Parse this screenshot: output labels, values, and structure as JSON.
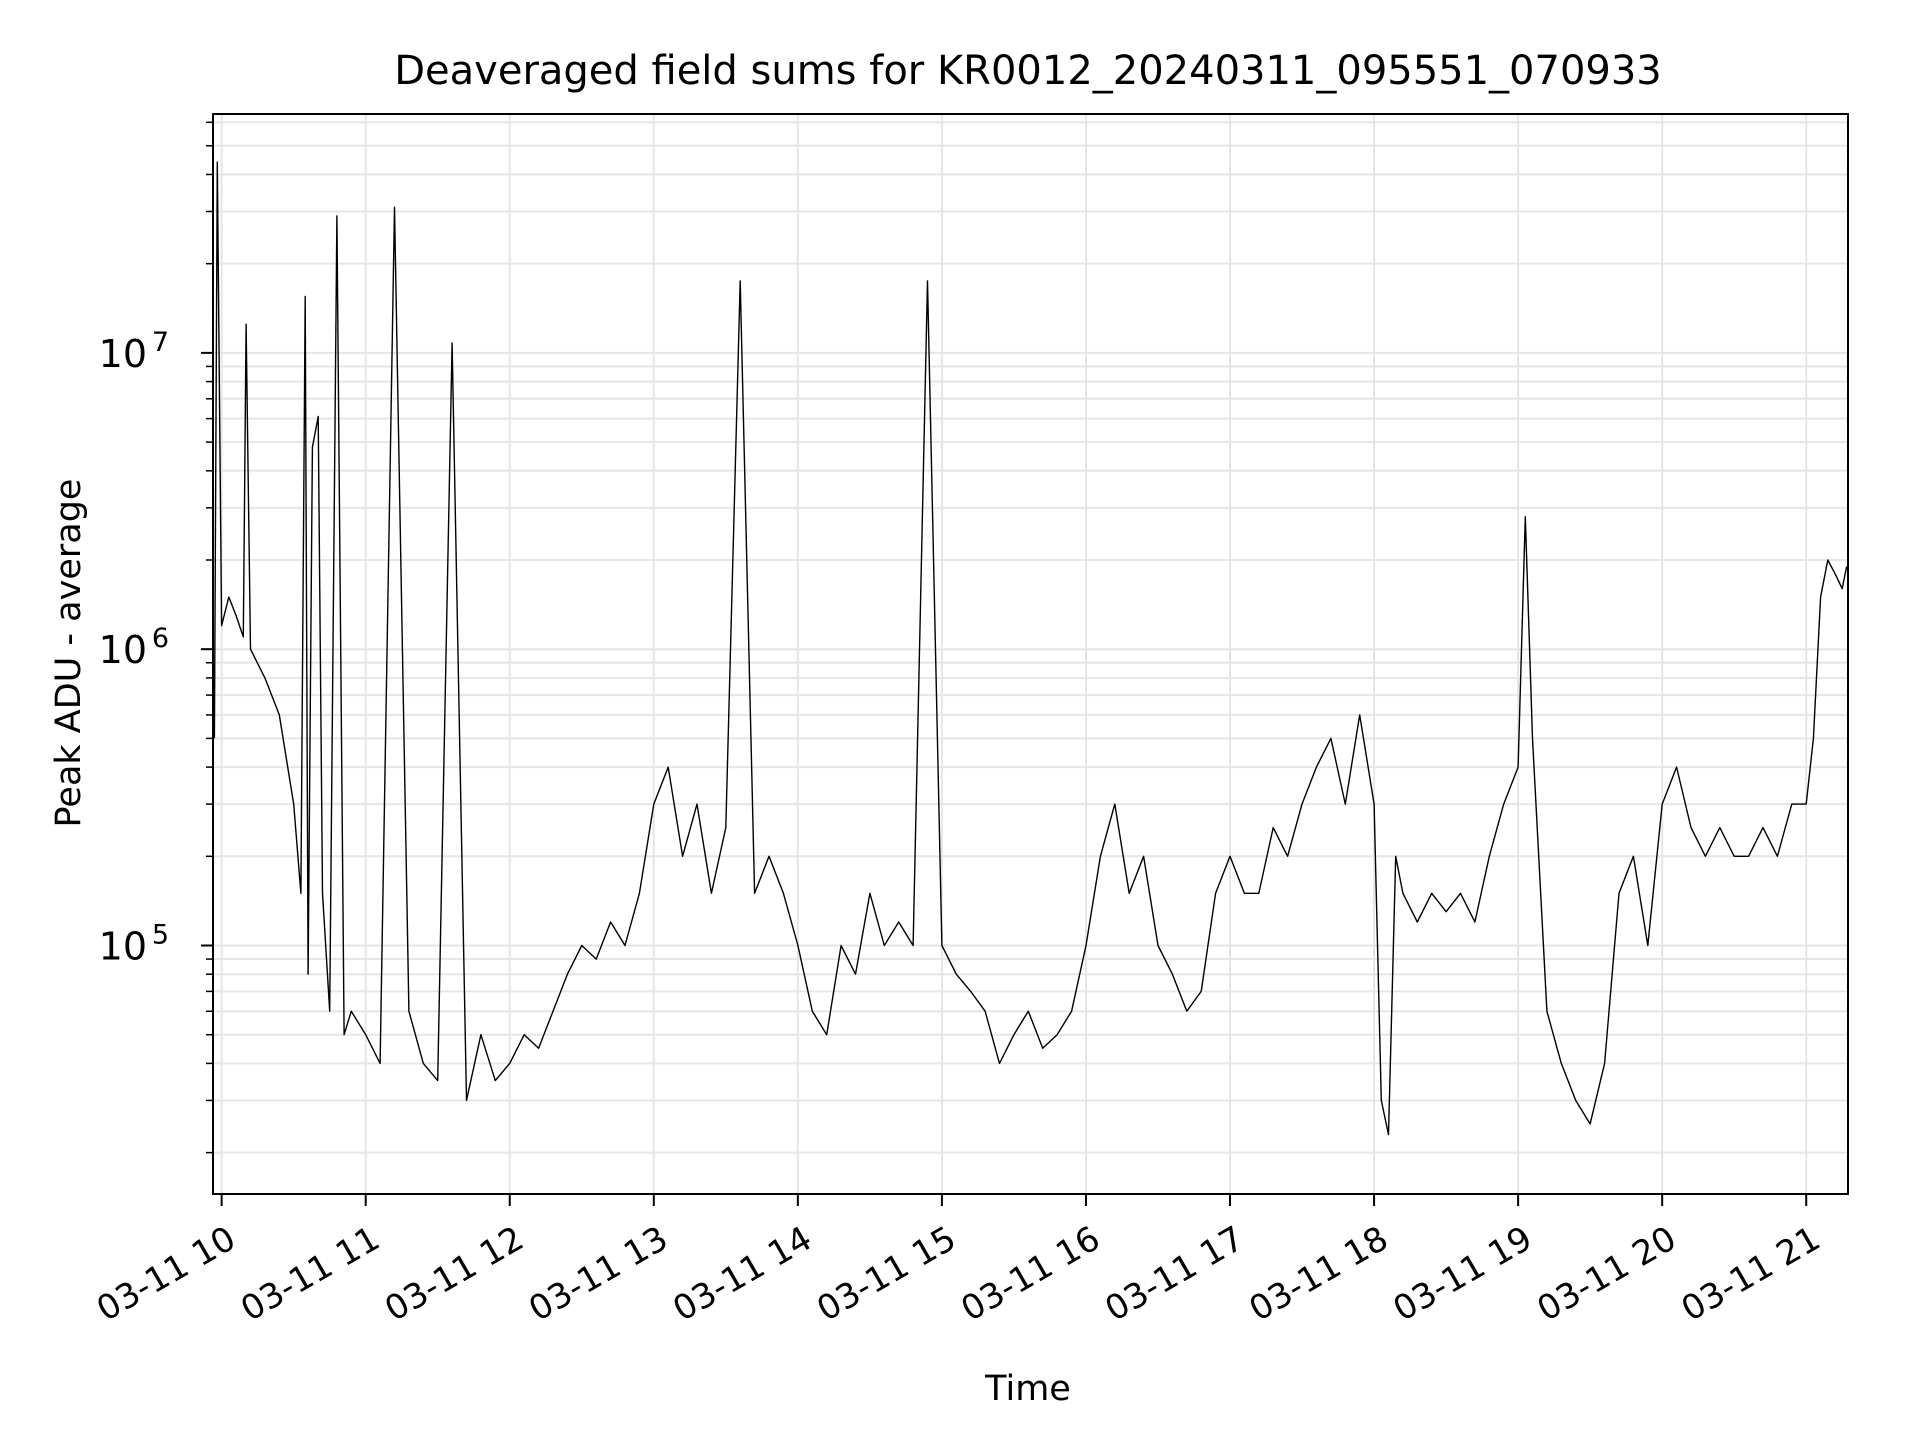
{
  "chart_data": {
    "type": "line",
    "title": "Deaveraged field sums for KR0012_20240311_095551_070933",
    "xlabel": "Time",
    "ylabel": "Peak ADU - average",
    "yscale": "log",
    "ylim": [
      14500,
      64000000
    ],
    "xlim_hours": [
      9.94,
      21.29
    ],
    "grid": true,
    "grid_minor": true,
    "x_ticks": [
      {
        "hour": 10,
        "label": "03-11 10"
      },
      {
        "hour": 11,
        "label": "03-11 11"
      },
      {
        "hour": 12,
        "label": "03-11 12"
      },
      {
        "hour": 13,
        "label": "03-11 13"
      },
      {
        "hour": 14,
        "label": "03-11 14"
      },
      {
        "hour": 15,
        "label": "03-11 15"
      },
      {
        "hour": 16,
        "label": "03-11 16"
      },
      {
        "hour": 17,
        "label": "03-11 17"
      },
      {
        "hour": 18,
        "label": "03-11 18"
      },
      {
        "hour": 19,
        "label": "03-11 19"
      },
      {
        "hour": 20,
        "label": "03-11 20"
      },
      {
        "hour": 21,
        "label": "03-11 21"
      }
    ],
    "y_ticks": [
      {
        "value": 100000,
        "base": "10",
        "exp": "5"
      },
      {
        "value": 1000000,
        "base": "10",
        "exp": "6"
      },
      {
        "value": 10000000,
        "base": "10",
        "exp": "7"
      }
    ],
    "series": [
      {
        "name": "Deaveraged field sum",
        "color": "#000000",
        "points": [
          [
            9.95,
            500000
          ],
          [
            9.97,
            44000000
          ],
          [
            10.0,
            1200000
          ],
          [
            10.05,
            1500000
          ],
          [
            10.1,
            1300000
          ],
          [
            10.15,
            1100000
          ],
          [
            10.17,
            12500000
          ],
          [
            10.2,
            1000000
          ],
          [
            10.3,
            800000
          ],
          [
            10.4,
            600000
          ],
          [
            10.5,
            300000
          ],
          [
            10.55,
            150000
          ],
          [
            10.58,
            15500000
          ],
          [
            10.6,
            80000
          ],
          [
            10.63,
            4800000
          ],
          [
            10.67,
            6100000
          ],
          [
            10.7,
            150000
          ],
          [
            10.75,
            60000
          ],
          [
            10.8,
            29000000
          ],
          [
            10.85,
            50000
          ],
          [
            10.9,
            60000
          ],
          [
            11.0,
            50000
          ],
          [
            11.1,
            40000
          ],
          [
            11.2,
            31000000
          ],
          [
            11.3,
            60000
          ],
          [
            11.4,
            40000
          ],
          [
            11.5,
            35000
          ],
          [
            11.6,
            10800000
          ],
          [
            11.7,
            30000
          ],
          [
            11.8,
            50000
          ],
          [
            11.9,
            35000
          ],
          [
            12.0,
            40000
          ],
          [
            12.1,
            50000
          ],
          [
            12.2,
            45000
          ],
          [
            12.3,
            60000
          ],
          [
            12.4,
            80000
          ],
          [
            12.5,
            100000
          ],
          [
            12.6,
            90000
          ],
          [
            12.7,
            120000
          ],
          [
            12.8,
            100000
          ],
          [
            12.9,
            150000
          ],
          [
            13.0,
            300000
          ],
          [
            13.1,
            400000
          ],
          [
            13.2,
            200000
          ],
          [
            13.3,
            300000
          ],
          [
            13.4,
            150000
          ],
          [
            13.5,
            250000
          ],
          [
            13.6,
            17500000
          ],
          [
            13.7,
            150000
          ],
          [
            13.8,
            200000
          ],
          [
            13.9,
            150000
          ],
          [
            14.0,
            100000
          ],
          [
            14.1,
            60000
          ],
          [
            14.2,
            50000
          ],
          [
            14.3,
            100000
          ],
          [
            14.4,
            80000
          ],
          [
            14.5,
            150000
          ],
          [
            14.6,
            100000
          ],
          [
            14.7,
            120000
          ],
          [
            14.8,
            100000
          ],
          [
            14.9,
            17500000
          ],
          [
            15.0,
            100000
          ],
          [
            15.1,
            80000
          ],
          [
            15.2,
            70000
          ],
          [
            15.3,
            60000
          ],
          [
            15.4,
            40000
          ],
          [
            15.5,
            50000
          ],
          [
            15.6,
            60000
          ],
          [
            15.7,
            45000
          ],
          [
            15.8,
            50000
          ],
          [
            15.9,
            60000
          ],
          [
            16.0,
            100000
          ],
          [
            16.1,
            200000
          ],
          [
            16.2,
            300000
          ],
          [
            16.3,
            150000
          ],
          [
            16.4,
            200000
          ],
          [
            16.5,
            100000
          ],
          [
            16.6,
            80000
          ],
          [
            16.7,
            60000
          ],
          [
            16.8,
            70000
          ],
          [
            16.9,
            150000
          ],
          [
            17.0,
            200000
          ],
          [
            17.1,
            150000
          ],
          [
            17.2,
            150000
          ],
          [
            17.3,
            250000
          ],
          [
            17.4,
            200000
          ],
          [
            17.5,
            300000
          ],
          [
            17.6,
            400000
          ],
          [
            17.7,
            500000
          ],
          [
            17.8,
            300000
          ],
          [
            17.9,
            600000
          ],
          [
            18.0,
            300000
          ],
          [
            18.05,
            30000
          ],
          [
            18.1,
            23000
          ],
          [
            18.15,
            200000
          ],
          [
            18.2,
            150000
          ],
          [
            18.3,
            120000
          ],
          [
            18.4,
            150000
          ],
          [
            18.5,
            130000
          ],
          [
            18.6,
            150000
          ],
          [
            18.7,
            120000
          ],
          [
            18.8,
            200000
          ],
          [
            18.9,
            300000
          ],
          [
            19.0,
            400000
          ],
          [
            19.05,
            2800000
          ],
          [
            19.1,
            500000
          ],
          [
            19.2,
            60000
          ],
          [
            19.3,
            40000
          ],
          [
            19.4,
            30000
          ],
          [
            19.5,
            25000
          ],
          [
            19.6,
            40000
          ],
          [
            19.7,
            150000
          ],
          [
            19.8,
            200000
          ],
          [
            19.9,
            100000
          ],
          [
            20.0,
            300000
          ],
          [
            20.1,
            400000
          ],
          [
            20.2,
            250000
          ],
          [
            20.3,
            200000
          ],
          [
            20.4,
            250000
          ],
          [
            20.5,
            200000
          ],
          [
            20.6,
            200000
          ],
          [
            20.7,
            250000
          ],
          [
            20.8,
            200000
          ],
          [
            20.9,
            300000
          ],
          [
            21.0,
            300000
          ],
          [
            21.05,
            500000
          ],
          [
            21.1,
            1500000
          ],
          [
            21.15,
            2000000
          ],
          [
            21.2,
            1800000
          ],
          [
            21.25,
            1600000
          ],
          [
            21.28,
            1900000
          ]
        ]
      }
    ]
  }
}
